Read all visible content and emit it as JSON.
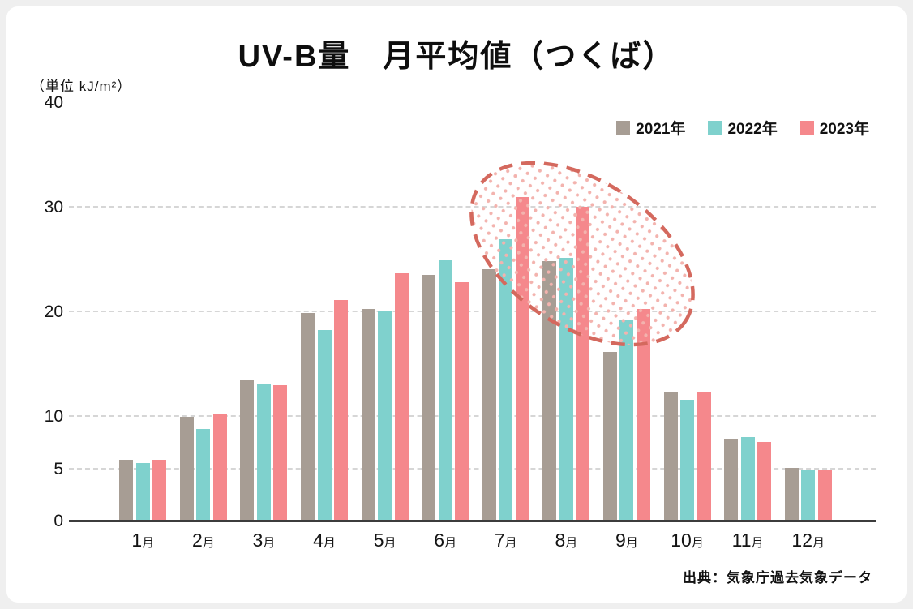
{
  "page": {
    "title": "UV-B量　月平均値（つくば）",
    "unit_label": "（単位 kJ/m²）",
    "source": "出典：気象庁過去気象データ"
  },
  "legend": [
    {
      "label": "2021年",
      "color": "#a79d94"
    },
    {
      "label": "2022年",
      "color": "#7fd1cd"
    },
    {
      "label": "2023年",
      "color": "#f5888c"
    }
  ],
  "chart_data": {
    "type": "bar",
    "title": "UV-B量　月平均値（つくば）",
    "unit": "kJ/m²",
    "categories": [
      "1月",
      "2月",
      "3月",
      "4月",
      "5月",
      "6月",
      "7月",
      "8月",
      "9月",
      "10月",
      "11月",
      "12月"
    ],
    "series": [
      {
        "name": "2021年",
        "color": "#a79d94",
        "values": [
          5.9,
          10.0,
          13.5,
          19.9,
          20.3,
          23.6,
          24.1,
          24.9,
          16.2,
          12.3,
          7.9,
          5.1
        ]
      },
      {
        "name": "2022年",
        "color": "#7fd1cd",
        "values": [
          5.6,
          8.8,
          13.2,
          18.3,
          20.1,
          25.0,
          27.0,
          25.2,
          19.2,
          11.6,
          8.1,
          5.0
        ]
      },
      {
        "name": "2023年",
        "color": "#f5888c",
        "values": [
          5.9,
          10.2,
          13.0,
          21.2,
          23.7,
          22.9,
          31.0,
          30.1,
          20.3,
          12.4,
          7.6,
          5.0
        ]
      }
    ],
    "ylim": [
      0,
      40
    ],
    "ytick_labels": [
      0,
      5,
      10,
      20,
      30,
      40
    ],
    "gridlines": [
      5,
      10,
      20,
      30
    ],
    "legend_position": "top-right",
    "grid": true,
    "annotation": {
      "type": "dashed-ellipse-highlight",
      "months": "7月〜9月",
      "stroke_color": "#d4695e",
      "dot_color": "#f3b3ae"
    }
  }
}
